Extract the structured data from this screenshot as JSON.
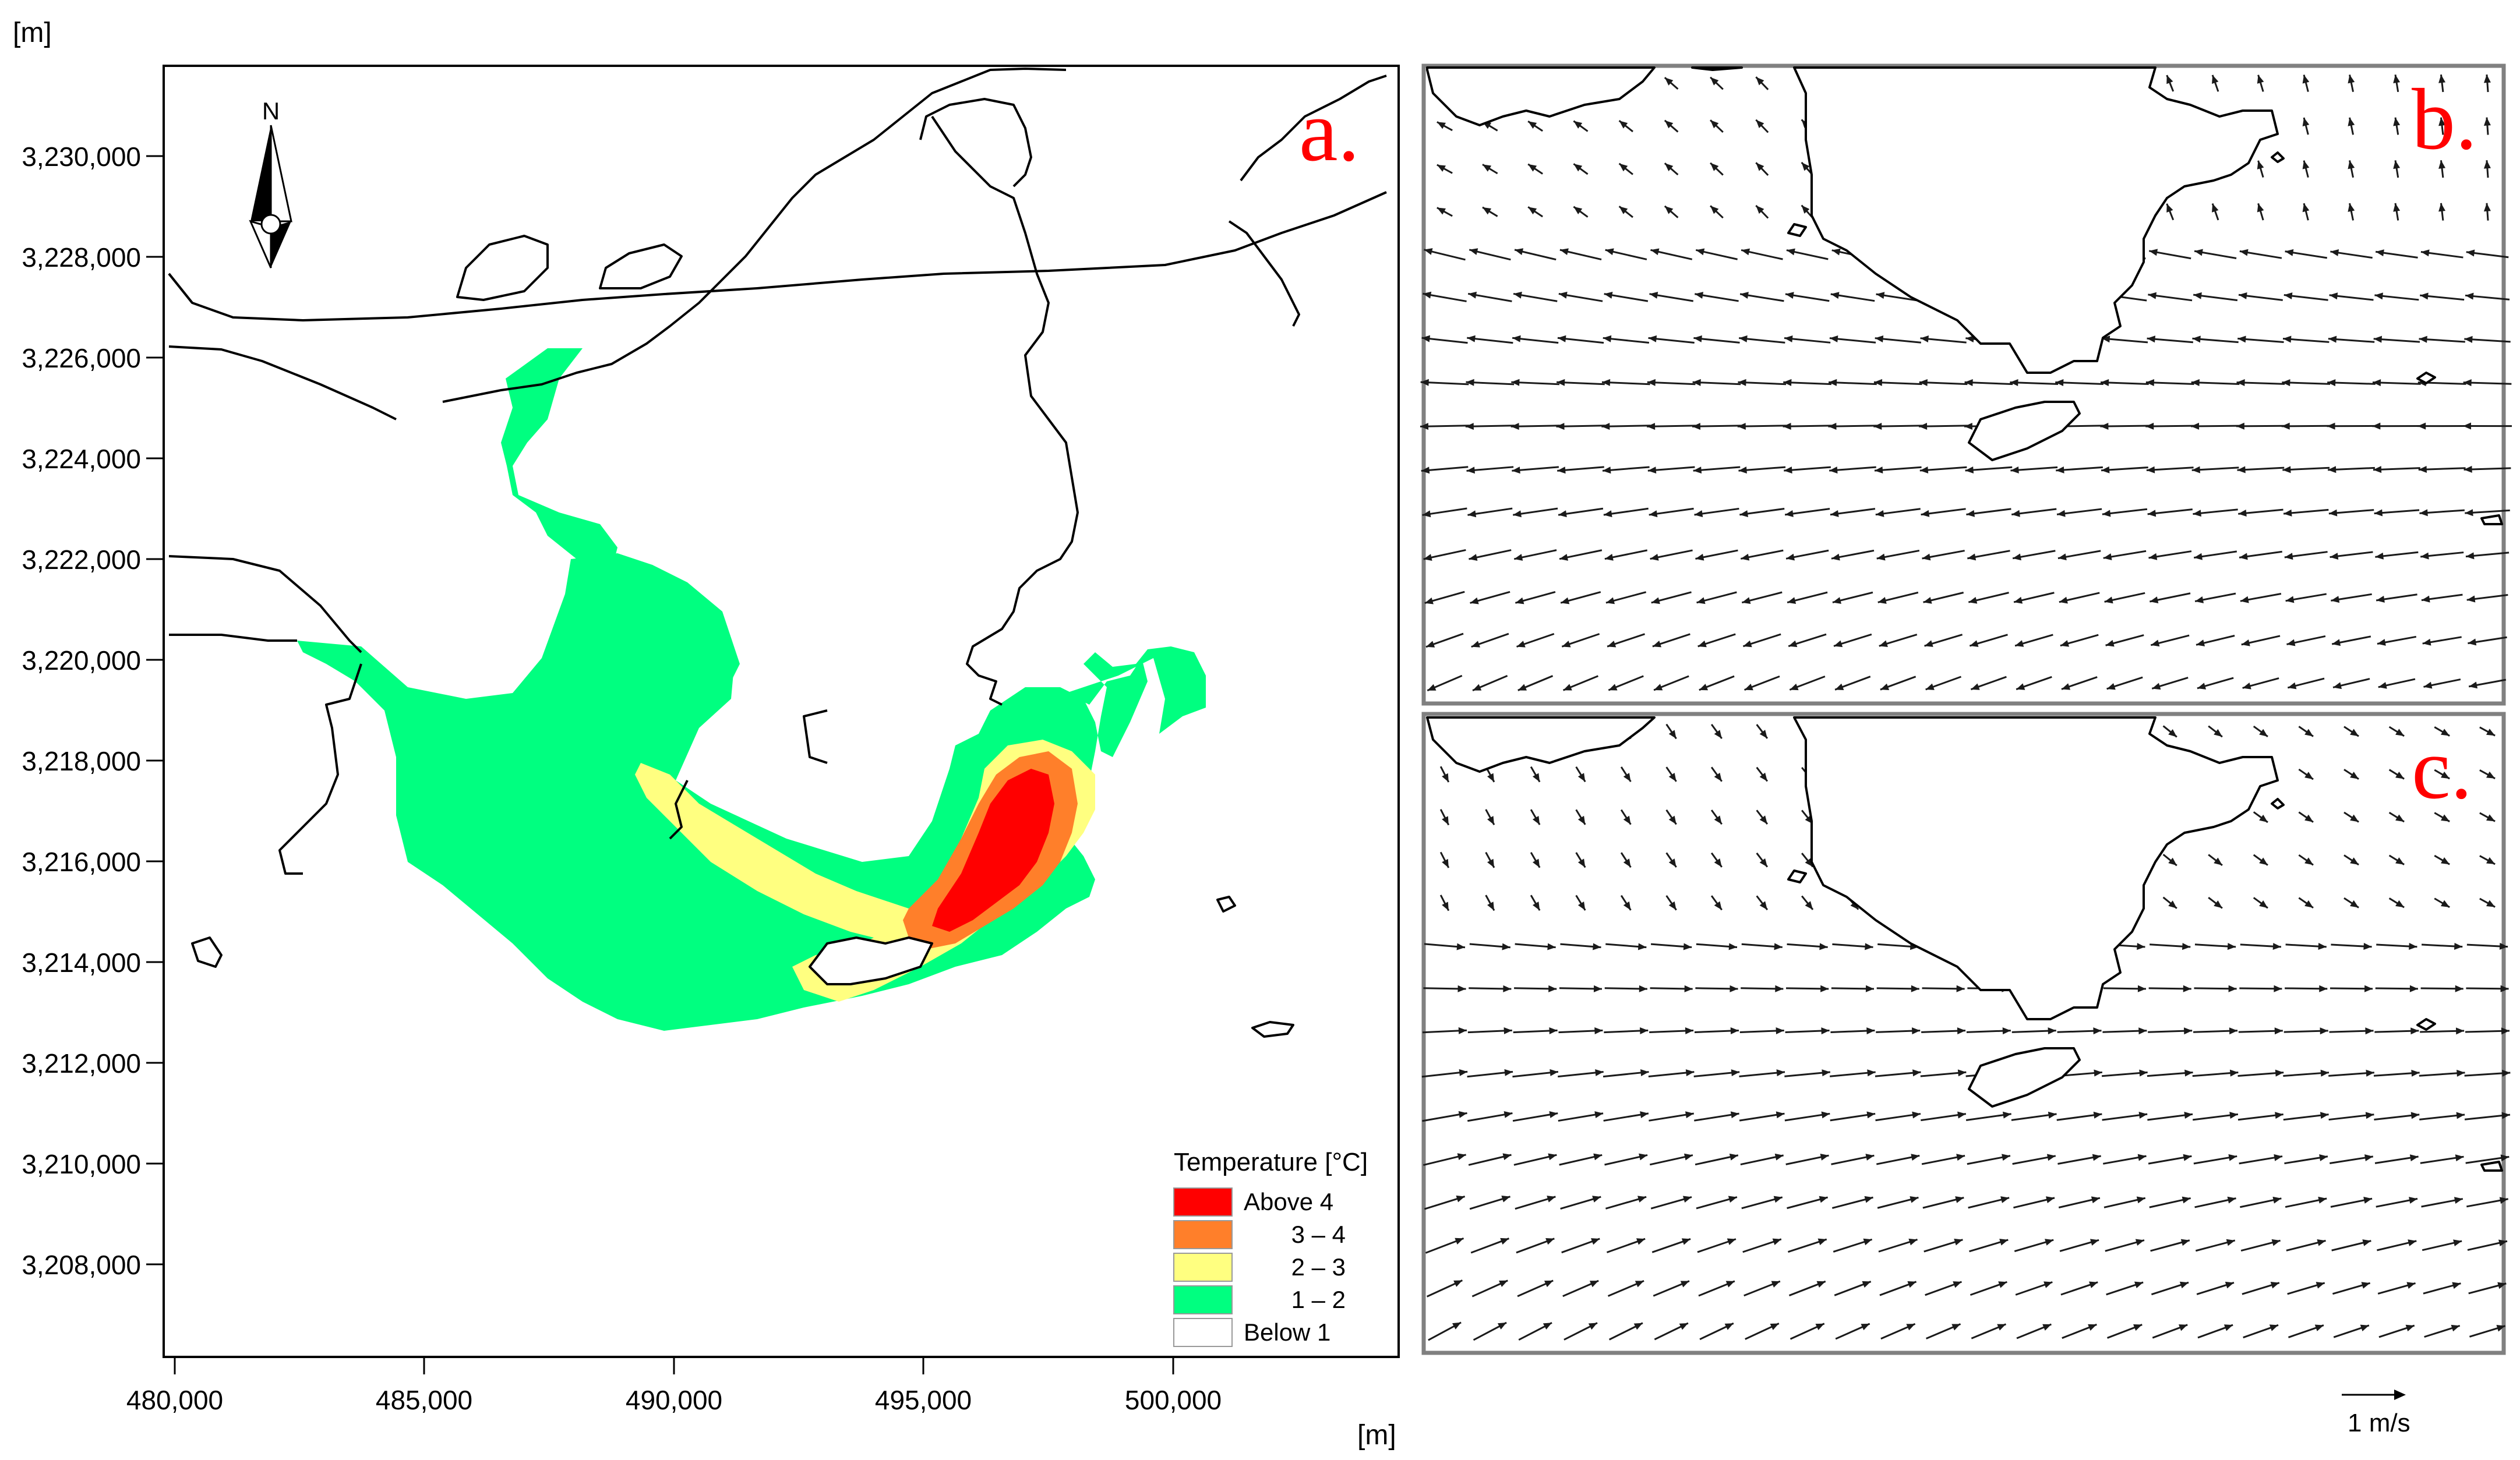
{
  "axis_units": {
    "y": "[m]",
    "x": "[m]"
  },
  "y_ticks": [
    "3,230,000",
    "3,228,000",
    "3,226,000",
    "3,224,000",
    "3,222,000",
    "3,220,000",
    "3,218,000",
    "3,216,000",
    "3,214,000",
    "3,212,000",
    "3,210,000",
    "3,208,000"
  ],
  "x_ticks": [
    "480,000",
    "485,000",
    "490,000",
    "495,000",
    "500,000"
  ],
  "north_label": "N",
  "panel_labels": {
    "a": "a.",
    "b": "b.",
    "c": "c."
  },
  "legend": {
    "title": "Temperature [°C]",
    "items": [
      {
        "label": "Above 4",
        "color": "#ff0000"
      },
      {
        "label": "3 – 4",
        "color": "#ff7f2a"
      },
      {
        "label": "2 – 3",
        "color": "#ffff80"
      },
      {
        "label": "1 – 2",
        "color": "#00ff80"
      },
      {
        "label": "Below 1",
        "color": "#ffffff"
      }
    ]
  },
  "scale_arrow": {
    "label": "1 m/s"
  },
  "colors": {
    "frame_gray": "#808080"
  }
}
